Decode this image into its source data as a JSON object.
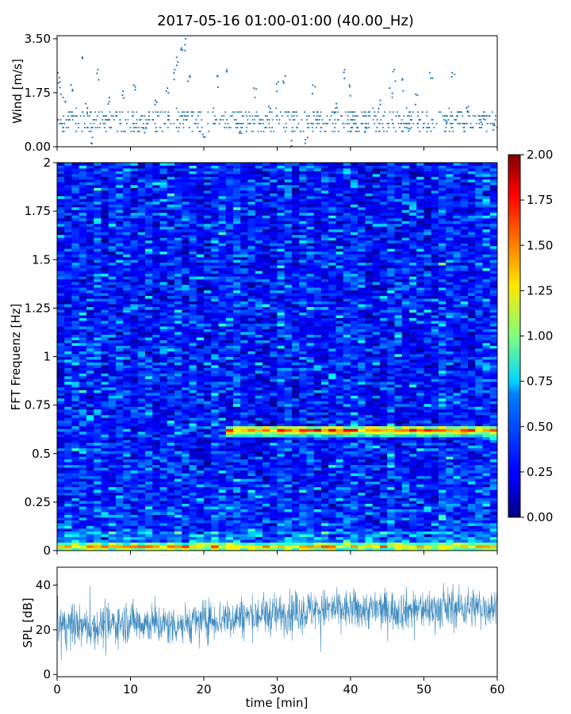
{
  "chart_data": [
    {
      "type": "scatter",
      "title": "2017-05-16 01:00-01:00 (40.00_Hz)",
      "xlabel": "",
      "ylabel": "Wind [m/s]",
      "xlim": [
        0,
        60
      ],
      "ylim": [
        0,
        3.6
      ],
      "y_ticks": [
        "0.00",
        "1.75",
        "3.50"
      ],
      "y_tick_values": [
        0,
        1.75,
        3.5
      ],
      "color": "#1f77b4",
      "series_summary": {
        "baseline_range": [
          0.5,
          1.2
        ],
        "points": [
          [
            0.2,
            2.4
          ],
          [
            0.5,
            2.1
          ],
          [
            1.0,
            1.6
          ],
          [
            2.0,
            2.0
          ],
          [
            3.5,
            2.9
          ],
          [
            4.0,
            1.4
          ],
          [
            4.8,
            0.3
          ],
          [
            5.5,
            2.5
          ],
          [
            7.0,
            1.6
          ],
          [
            9.0,
            1.8
          ],
          [
            10.5,
            2.0
          ],
          [
            12.0,
            0.6
          ],
          [
            13.5,
            1.5
          ],
          [
            15.0,
            1.9
          ],
          [
            16.0,
            2.5
          ],
          [
            16.5,
            2.9
          ],
          [
            17.0,
            3.2
          ],
          [
            17.5,
            3.5
          ],
          [
            18.0,
            2.3
          ],
          [
            20.0,
            0.4
          ],
          [
            22.0,
            2.3
          ],
          [
            23.0,
            2.5
          ],
          [
            25.0,
            0.5
          ],
          [
            27.0,
            1.9
          ],
          [
            29.0,
            1.3
          ],
          [
            30.0,
            2.1
          ],
          [
            31.0,
            2.3
          ],
          [
            32.0,
            0.2
          ],
          [
            34.0,
            0.3
          ],
          [
            35.0,
            2.0
          ],
          [
            38.0,
            1.4
          ],
          [
            39.0,
            2.5
          ],
          [
            40.0,
            2.0
          ],
          [
            42.0,
            0.6
          ],
          [
            44.0,
            1.5
          ],
          [
            45.5,
            1.9
          ],
          [
            46.0,
            2.5
          ],
          [
            47.0,
            2.2
          ],
          [
            48.0,
            0.6
          ],
          [
            49.0,
            1.7
          ],
          [
            51.0,
            2.4
          ],
          [
            53.0,
            1.0
          ],
          [
            54.0,
            2.4
          ],
          [
            56.0,
            1.3
          ],
          [
            58.0,
            0.9
          ],
          [
            59.5,
            0.7
          ]
        ]
      }
    },
    {
      "type": "heatmap",
      "xlabel": "",
      "ylabel": "FFT Frequenz [Hz]",
      "xlim": [
        0,
        60
      ],
      "ylim": [
        0,
        2
      ],
      "y_ticks": [
        "0",
        "0.25",
        "0.5",
        "0.75",
        "1",
        "1.25",
        "1.5",
        "1.75",
        "2"
      ],
      "y_tick_values": [
        0,
        0.25,
        0.5,
        0.75,
        1,
        1.25,
        1.5,
        1.75,
        2
      ],
      "colormap": "jet",
      "colorbar": {
        "min": 0,
        "max": 2,
        "ticks": [
          "0.00",
          "0.25",
          "0.50",
          "0.75",
          "1.00",
          "1.25",
          "1.50",
          "1.75",
          "2.00"
        ],
        "tick_values": [
          0,
          0.25,
          0.5,
          0.75,
          1,
          1.25,
          1.5,
          1.75,
          2
        ]
      },
      "features": [
        {
          "freq": 0.62,
          "x_range": [
            23,
            60
          ],
          "value": 1.6
        },
        {
          "freq": 0.02,
          "x_range": [
            0,
            60
          ],
          "value": 1.2
        }
      ]
    },
    {
      "type": "line",
      "xlabel": "time [min]",
      "ylabel": "SPL [dB]",
      "xlim": [
        0,
        60
      ],
      "ylim": [
        -1,
        48
      ],
      "x_ticks": [
        "0",
        "10",
        "20",
        "30",
        "40",
        "50",
        "60"
      ],
      "x_tick_values": [
        0,
        10,
        20,
        30,
        40,
        50,
        60
      ],
      "y_ticks": [
        "0",
        "20",
        "40"
      ],
      "y_tick_values": [
        0,
        20,
        40
      ],
      "color": "#1f77b4",
      "mean_trend": [
        [
          0,
          22
        ],
        [
          5,
          21
        ],
        [
          10,
          24
        ],
        [
          15,
          22
        ],
        [
          20,
          24
        ],
        [
          25,
          26
        ],
        [
          30,
          27
        ],
        [
          35,
          29
        ],
        [
          40,
          29
        ],
        [
          45,
          29
        ],
        [
          50,
          29
        ],
        [
          55,
          30
        ],
        [
          60,
          30
        ]
      ],
      "spread": 6
    }
  ]
}
